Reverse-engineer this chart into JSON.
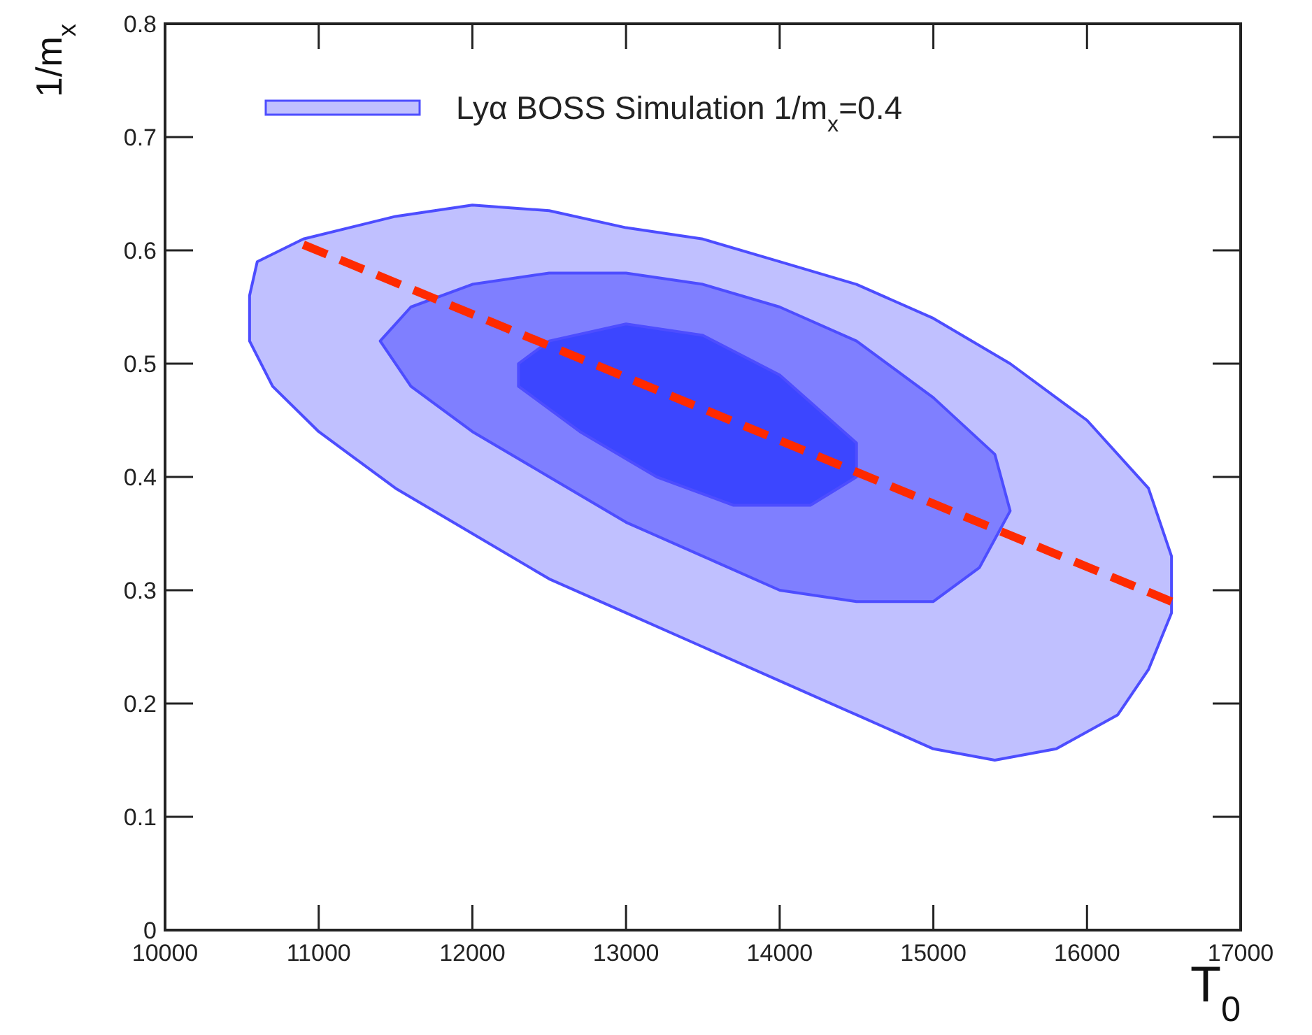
{
  "chart_data": {
    "type": "area",
    "xlabel": "T$_{0}$",
    "ylabel": "1/m$_{x}$",
    "xlim": [
      10000,
      17000
    ],
    "xticks": [
      10000,
      11000,
      12000,
      13000,
      14000,
      15000,
      16000,
      17000
    ],
    "ylim": [
      0,
      0.8
    ],
    "yticks": [
      0,
      0.1,
      0.2,
      0.3,
      0.4,
      0.5,
      0.6,
      0.7,
      0.8
    ],
    "grid": false,
    "legend": "top left",
    "series": [
      {
        "name": "Lyα BOSS Simulation 1/m$_{x}$=0.4",
        "color": "#c0c0ff",
        "x": [
          10550,
          10600,
          10900,
          11500,
          12000,
          12500,
          13000,
          13500,
          14000,
          14500,
          15000,
          15500,
          16000,
          16400,
          16550,
          16550,
          16400,
          16200,
          15800,
          15400,
          15000,
          14500,
          14000,
          13500,
          13000,
          12500,
          12000,
          11500,
          11000,
          10700,
          10550,
          10550
        ],
        "values": [
          0.56,
          0.59,
          0.61,
          0.63,
          0.64,
          0.635,
          0.62,
          0.61,
          0.59,
          0.57,
          0.54,
          0.5,
          0.45,
          0.39,
          0.33,
          0.28,
          0.23,
          0.19,
          0.16,
          0.15,
          0.16,
          0.19,
          0.22,
          0.25,
          0.28,
          0.31,
          0.35,
          0.39,
          0.44,
          0.48,
          0.52,
          0.56
        ]
      },
      {
        "color": "#7f7fff",
        "x": [
          11400,
          11600,
          12000,
          12500,
          13000,
          13500,
          14000,
          14500,
          15000,
          15400,
          15500,
          15300,
          15000,
          14500,
          14000,
          13500,
          13000,
          12500,
          12000,
          11600,
          11400
        ],
        "values": [
          0.52,
          0.55,
          0.57,
          0.58,
          0.58,
          0.57,
          0.55,
          0.52,
          0.47,
          0.42,
          0.37,
          0.32,
          0.29,
          0.29,
          0.3,
          0.33,
          0.36,
          0.4,
          0.44,
          0.48,
          0.52
        ]
      },
      {
        "color": "#3c46ff",
        "x": [
          12300,
          12500,
          13000,
          13500,
          14000,
          14500,
          14500,
          14200,
          13700,
          13200,
          12700,
          12300,
          12300
        ],
        "values": [
          0.5,
          0.52,
          0.535,
          0.525,
          0.49,
          0.43,
          0.4,
          0.375,
          0.375,
          0.4,
          0.44,
          0.48,
          0.5
        ]
      },
      {
        "type": "line",
        "color": "#ff2a00",
        "line_style": "dashed",
        "x": [
          10900,
          16550
        ],
        "values": [
          0.605,
          0.29
        ]
      }
    ]
  }
}
